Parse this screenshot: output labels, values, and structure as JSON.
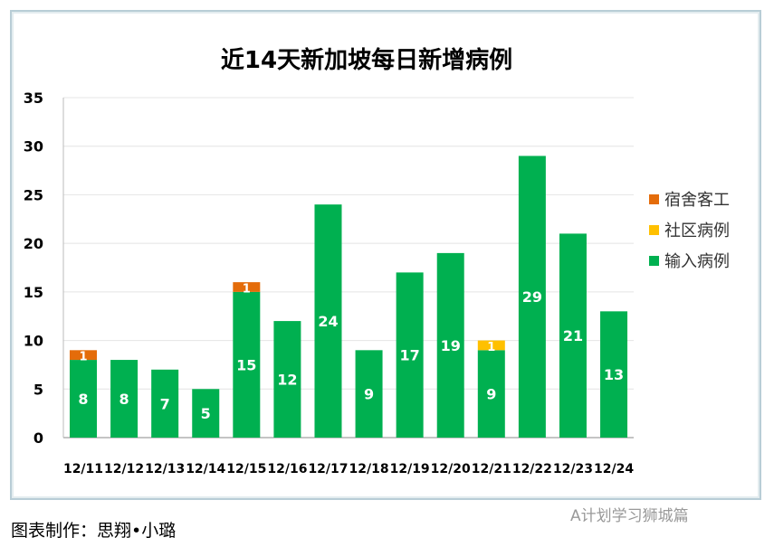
{
  "chart_data": {
    "type": "bar",
    "stacked": true,
    "title": "近14天新加坡每日新增病例",
    "categories": [
      "12/11",
      "12/12",
      "12/13",
      "12/14",
      "12/15",
      "12/16",
      "12/17",
      "12/18",
      "12/19",
      "12/20",
      "12/21",
      "12/22",
      "12/23",
      "12/24"
    ],
    "series": [
      {
        "name": "输入病例",
        "color": "#00b050",
        "values": [
          8,
          8,
          7,
          5,
          15,
          12,
          24,
          9,
          17,
          19,
          9,
          29,
          21,
          13
        ]
      },
      {
        "name": "社区病例",
        "color": "#ffc000",
        "values": [
          0,
          0,
          0,
          0,
          0,
          0,
          0,
          0,
          0,
          0,
          1,
          0,
          0,
          0
        ]
      },
      {
        "name": "宿舍客工",
        "color": "#e46c0a",
        "values": [
          1,
          0,
          0,
          0,
          1,
          0,
          0,
          0,
          0,
          0,
          0,
          0,
          0,
          0
        ]
      }
    ],
    "legend_order": [
      "宿舍客工",
      "社区病例",
      "输入病例"
    ],
    "yticks": [
      0,
      5,
      10,
      15,
      20,
      25,
      30,
      35
    ],
    "ylim": [
      0,
      35
    ],
    "grid": true,
    "legend": "right"
  },
  "footer": "图表制作：思翔•小璐",
  "watermark": "A计划学习狮城篇"
}
